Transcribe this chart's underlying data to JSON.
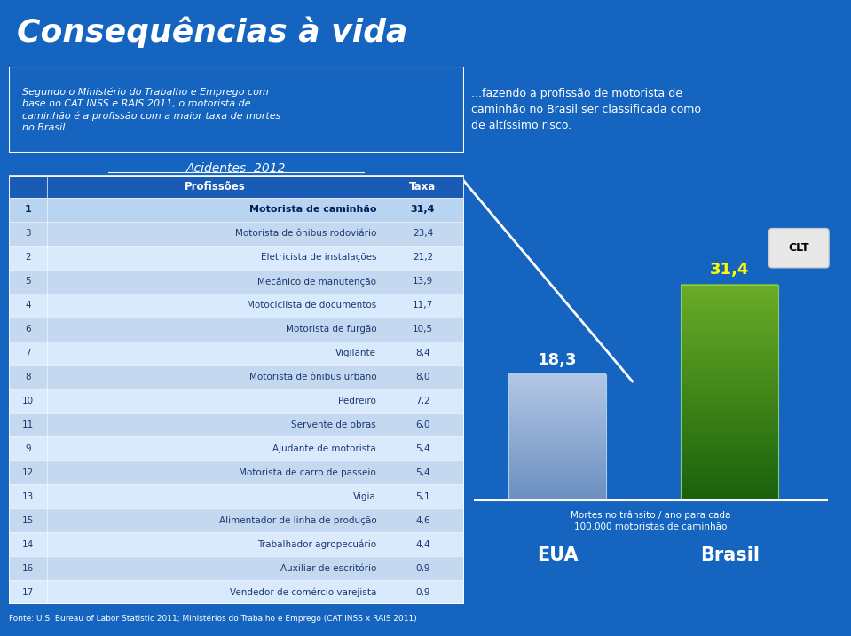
{
  "title": "Consequências à vida",
  "bg_color": "#1565C0",
  "intro_text": "Segundo o Ministério do Trabalho e Emprego com\nbase no CAT INSS e RAIS 2011, o motorista de\ncaminhão é a profissão com a maior taxa de mortes\nno Brasil.",
  "right_text": "...fazendo a profissão de motorista de\ncaminhão no Brasil ser classificada como\nde altíssimo risco.",
  "table_title": "Acidentes  2012",
  "table_header": [
    "Profissões",
    "Taxa"
  ],
  "table_rows": [
    [
      "1",
      "Motorista de caminhão",
      "31,4",
      true
    ],
    [
      "3",
      "Motorista de ônibus rodoviário",
      "23,4",
      false
    ],
    [
      "2",
      "Eletricista de instalações",
      "21,2",
      false
    ],
    [
      "5",
      "Mecânico de manutenção",
      "13,9",
      false
    ],
    [
      "4",
      "Motociclista de documentos",
      "11,7",
      false
    ],
    [
      "6",
      "Motorista de furgão",
      "10,5",
      false
    ],
    [
      "7",
      "Vigilante",
      "8,4",
      false
    ],
    [
      "8",
      "Motorista de ônibus urbano",
      "8,0",
      false
    ],
    [
      "10",
      "Pedreiro",
      "7,2",
      false
    ],
    [
      "11",
      "Servente de obras",
      "6,0",
      false
    ],
    [
      "9",
      "Ajudante de motorista",
      "5,4",
      false
    ],
    [
      "12",
      "Motorista de carro de passeio",
      "5,4",
      false
    ],
    [
      "13",
      "Vigia",
      "5,1",
      false
    ],
    [
      "15",
      "Alimentador de linha de produção",
      "4,6",
      false
    ],
    [
      "14",
      "Trabalhador agropecuário",
      "4,4",
      false
    ],
    [
      "16",
      "Auxiliar de escritório",
      "0,9",
      false
    ],
    [
      "17",
      "Vendedor de comércio varejista",
      "0,9",
      false
    ]
  ],
  "bar_eua_value": 18.3,
  "bar_brasil_value": 31.4,
  "bar_eua_label": "18,3",
  "bar_brasil_label": "31,4",
  "bar_eua_name": "EUA",
  "bar_brasil_name": "Brasil",
  "bar_subtitle": "Mortes no trânsito / ano para cada\n100.000 motoristas de caminhão",
  "clt_label": "CLT",
  "fonte": "Fonte: U.S. Bureau of Labor Statistic 2011; Ministérios do Trabalho e Emprego (CAT INSS x RAIS 2011)"
}
